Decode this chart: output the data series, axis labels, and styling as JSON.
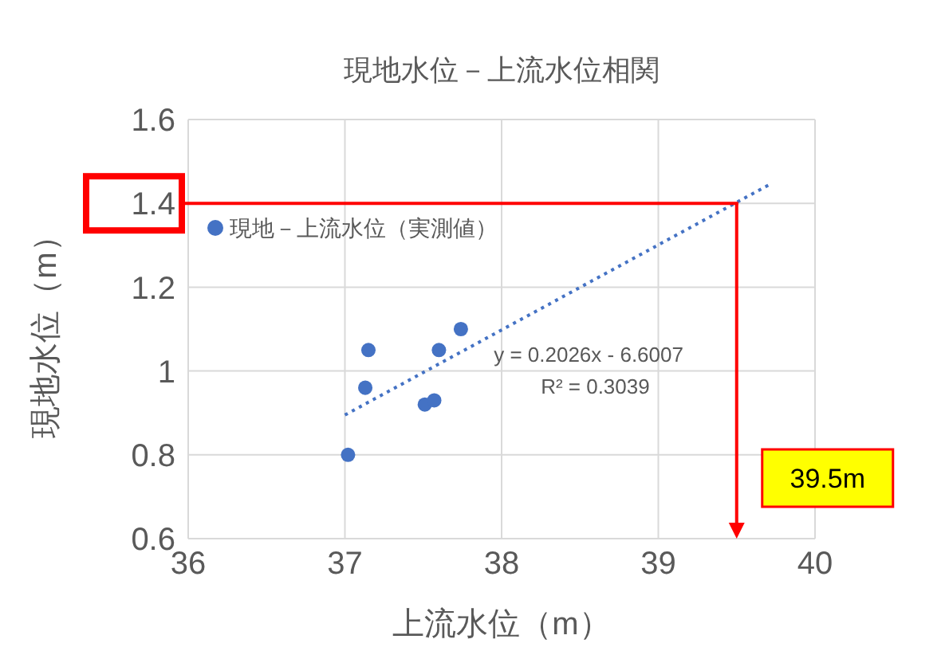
{
  "chart_data": {
    "type": "scatter",
    "title": "現地水位－上流水位相関",
    "xlabel": "上流水位（m）",
    "ylabel": "現地水位（m）",
    "xlim": [
      36,
      40
    ],
    "xticks": [
      36,
      37,
      38,
      39,
      40
    ],
    "ylim": [
      0.6,
      1.6
    ],
    "yticks": [
      0.6,
      0.8,
      1,
      1.2,
      1.4,
      1.6
    ],
    "grid": true,
    "legend": "top left",
    "series": [
      {
        "name": "現地－上流水位（実測値）",
        "type": "scatter",
        "marker": "circle",
        "color": "#4472c4",
        "x": [
          37.02,
          37.13,
          37.15,
          37.51,
          37.57,
          37.6,
          37.74
        ],
        "values": [
          0.8,
          0.96,
          1.05,
          0.92,
          0.93,
          1.05,
          1.1
        ]
      },
      {
        "type": "line",
        "line_style": "dotted",
        "color": "#4472c4",
        "x": [
          37,
          39.72
        ],
        "values": [
          0.895,
          1.447
        ]
      }
    ],
    "ref_lines": [
      {
        "axis": "y",
        "value": 1.4,
        "color": "#ff0000"
      },
      {
        "axis": "x",
        "value": 39.5,
        "color": "#ff0000"
      }
    ],
    "annotations": [
      "y = 0.2026x - 6.6007",
      "R² = 0.3039",
      "39.5m"
    ]
  }
}
